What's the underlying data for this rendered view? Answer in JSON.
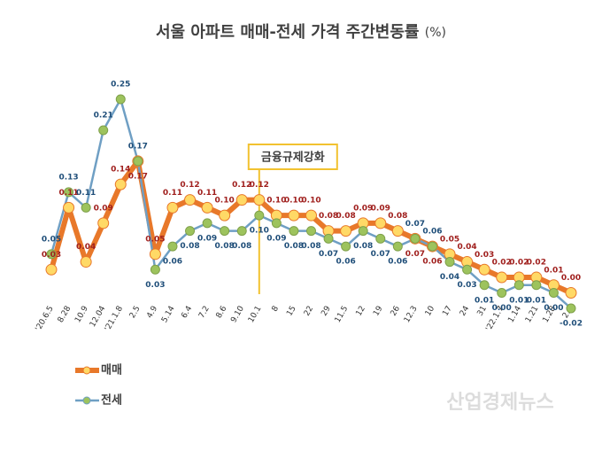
{
  "chart_data": {
    "type": "line",
    "title": "서울 아파트 매매-전세 가격 주간변동률",
    "title_unit": "(%)",
    "categories": [
      "'20.6.5",
      "8.28",
      "10.9",
      "12.04",
      "'21.1.8",
      "2.5",
      "4.9",
      "5.14",
      "6.4",
      "7.2",
      "8.6",
      "9.10",
      "10.1",
      "8",
      "15",
      "22",
      "29",
      "11.5",
      "12",
      "19",
      "26",
      "12.3",
      "10",
      "17",
      "24",
      "31",
      "'22.1.7",
      "1.14",
      "1.21",
      "1.28",
      "2.4"
    ],
    "series": [
      {
        "name": "매매",
        "color": "#e8782a",
        "marker_color": "#ffd966",
        "label_color": "#a0201e",
        "values": [
          0.03,
          0.11,
          0.04,
          0.09,
          0.14,
          0.17,
          0.05,
          0.11,
          0.12,
          0.11,
          0.1,
          0.12,
          0.12,
          0.1,
          0.1,
          0.1,
          0.08,
          0.08,
          0.09,
          0.09,
          0.08,
          0.07,
          0.06,
          0.05,
          0.04,
          0.03,
          0.02,
          0.02,
          0.02,
          0.01,
          0.0
        ],
        "value_labels": [
          "0.03",
          "0.11",
          "0.04",
          "0.09",
          "0.14",
          "0.17",
          "0.05",
          "0.11",
          "0.12",
          "0.11",
          "0.10",
          "0.12",
          "0.12",
          "0.10",
          "0.10",
          "0.10",
          "0.08",
          "0.08",
          "0.09",
          "0.09",
          "0.08",
          "0.07",
          "0.06",
          "0.05",
          "0.04",
          "0.03",
          "0.02",
          "0.02",
          "0.02",
          "0.01",
          "0.00"
        ]
      },
      {
        "name": "전세",
        "color": "#6f9fc4",
        "marker_color": "#9dc35d",
        "label_color": "#1f4e79",
        "values": [
          0.05,
          0.13,
          0.11,
          0.21,
          0.25,
          0.17,
          0.03,
          0.06,
          0.08,
          0.09,
          0.08,
          0.08,
          0.1,
          0.09,
          0.08,
          0.08,
          0.07,
          0.06,
          0.08,
          0.07,
          0.06,
          0.07,
          0.06,
          0.04,
          0.03,
          0.01,
          0.0,
          0.01,
          0.01,
          0.0,
          -0.02
        ],
        "value_labels": [
          "0.05",
          "0.13",
          "0.11",
          "0.21",
          "0.25",
          "0.17",
          "0.03",
          "0.06",
          "0.08",
          "0.09",
          "0.08",
          "0.08",
          "0.10",
          "0.09",
          "0.08",
          "0.08",
          "0.07",
          "0.06",
          "0.08",
          "0.07",
          "0.06",
          "0.07",
          "0.06",
          "0.04",
          "0.03",
          "0.01",
          "0.00",
          "0.01",
          "0.01",
          "0.00",
          "-0.02"
        ]
      }
    ],
    "annotation": {
      "text": "금융규제강화",
      "category_index": 12,
      "color": "#f2c230"
    },
    "watermark": "산업경제뉴스"
  }
}
